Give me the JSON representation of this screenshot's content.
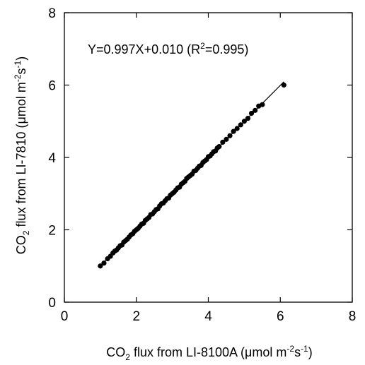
{
  "chart_data": {
    "type": "scatter",
    "title": "",
    "equation": {
      "prefix": "Y=0.997X+0.010 (R",
      "sup": "2",
      "suffix": "=0.995)"
    },
    "xlabel": {
      "part1": "CO",
      "sub": "2",
      "part2": " flux from LI-8100A (",
      "mu": "μ",
      "part3": "mol m",
      "sup1": "-2",
      "part4": "s",
      "sup2": "-1",
      "part5": ")"
    },
    "ylabel": {
      "part1": "CO",
      "sub": "2",
      "part2": " flux from LI-7810 (",
      "mu": "μ",
      "part3": "mol m",
      "sup1": "-2",
      "part4": "s",
      "sup2": "-1",
      "part5": ")"
    },
    "xlim": [
      0,
      8
    ],
    "ylim": [
      0,
      8
    ],
    "xticks": [
      "0",
      "2",
      "4",
      "6",
      "8"
    ],
    "yticks": [
      "0",
      "2",
      "4",
      "6",
      "8"
    ],
    "grid": false,
    "regression_line": {
      "slope": 0.997,
      "intercept": 0.01,
      "x_range": [
        1.0,
        6.1
      ]
    },
    "series": [
      {
        "points": [
          [
            1.0,
            1.0
          ],
          [
            1.1,
            1.08
          ],
          [
            1.2,
            1.2
          ],
          [
            1.28,
            1.27
          ],
          [
            1.35,
            1.36
          ],
          [
            1.4,
            1.41
          ],
          [
            1.45,
            1.44
          ],
          [
            1.5,
            1.5
          ],
          [
            1.55,
            1.56
          ],
          [
            1.6,
            1.58
          ],
          [
            1.65,
            1.66
          ],
          [
            1.7,
            1.7
          ],
          [
            1.75,
            1.74
          ],
          [
            1.8,
            1.8
          ],
          [
            1.85,
            1.86
          ],
          [
            1.9,
            1.89
          ],
          [
            1.95,
            1.96
          ],
          [
            2.0,
            2.0
          ],
          [
            2.05,
            2.04
          ],
          [
            2.1,
            2.1
          ],
          [
            2.15,
            2.16
          ],
          [
            2.2,
            2.18
          ],
          [
            2.25,
            2.26
          ],
          [
            2.3,
            2.3
          ],
          [
            2.35,
            2.34
          ],
          [
            2.4,
            2.42
          ],
          [
            2.45,
            2.44
          ],
          [
            2.5,
            2.5
          ],
          [
            2.55,
            2.56
          ],
          [
            2.6,
            2.58
          ],
          [
            2.65,
            2.66
          ],
          [
            2.7,
            2.72
          ],
          [
            2.75,
            2.74
          ],
          [
            2.8,
            2.8
          ],
          [
            2.85,
            2.86
          ],
          [
            2.9,
            2.88
          ],
          [
            2.95,
            2.96
          ],
          [
            3.0,
            3.0
          ],
          [
            3.05,
            3.04
          ],
          [
            3.1,
            3.1
          ],
          [
            3.15,
            3.16
          ],
          [
            3.2,
            3.18
          ],
          [
            3.25,
            3.26
          ],
          [
            3.3,
            3.3
          ],
          [
            3.35,
            3.34
          ],
          [
            3.4,
            3.42
          ],
          [
            3.45,
            3.46
          ],
          [
            3.5,
            3.5
          ],
          [
            3.55,
            3.54
          ],
          [
            3.6,
            3.62
          ],
          [
            3.65,
            3.64
          ],
          [
            3.7,
            3.7
          ],
          [
            3.75,
            3.76
          ],
          [
            3.8,
            3.78
          ],
          [
            3.85,
            3.86
          ],
          [
            3.9,
            3.9
          ],
          [
            3.95,
            3.94
          ],
          [
            4.0,
            4.02
          ],
          [
            4.05,
            4.04
          ],
          [
            4.1,
            4.1
          ],
          [
            4.15,
            4.16
          ],
          [
            4.2,
            4.18
          ],
          [
            4.25,
            4.26
          ],
          [
            4.3,
            4.3
          ],
          [
            4.4,
            4.42
          ],
          [
            4.5,
            4.5
          ],
          [
            4.6,
            4.6
          ],
          [
            4.7,
            4.72
          ],
          [
            4.8,
            4.8
          ],
          [
            4.9,
            4.9
          ],
          [
            5.0,
            5.0
          ],
          [
            5.1,
            5.08
          ],
          [
            5.2,
            5.22
          ],
          [
            5.3,
            5.3
          ],
          [
            5.4,
            5.42
          ],
          [
            5.5,
            5.46
          ],
          [
            6.1,
            6.0
          ]
        ]
      }
    ]
  }
}
